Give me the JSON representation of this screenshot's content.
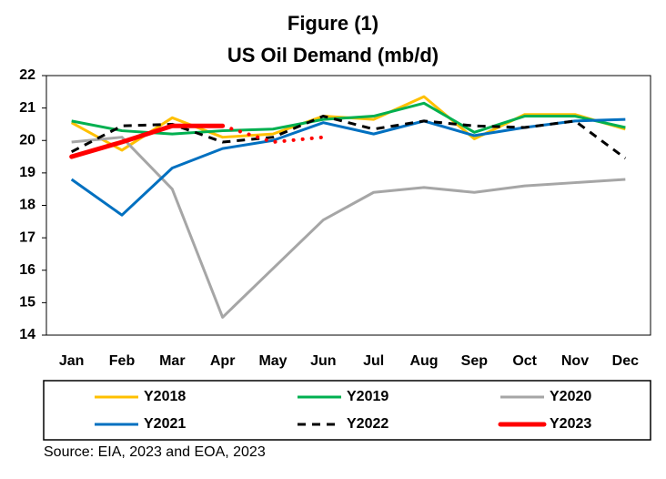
{
  "chart_data": {
    "type": "line",
    "title": "Figure (1)",
    "subtitle": "US Oil Demand (mb/d)",
    "categories": [
      "Jan",
      "Feb",
      "Mar",
      "Apr",
      "May",
      "Jun",
      "Jul",
      "Aug",
      "Sep",
      "Oct",
      "Nov",
      "Dec"
    ],
    "series": [
      {
        "name": "Y2018",
        "color": "#ffc000",
        "values": [
          20.55,
          19.7,
          20.7,
          20.1,
          20.2,
          20.75,
          20.65,
          21.35,
          20.05,
          20.8,
          20.8,
          20.35
        ]
      },
      {
        "name": "Y2019",
        "color": "#00b050",
        "values": [
          20.6,
          20.3,
          20.2,
          20.3,
          20.35,
          20.65,
          20.75,
          21.15,
          20.25,
          20.75,
          20.75,
          20.4
        ]
      },
      {
        "name": "Y2020",
        "color": "#a6a6a6",
        "values": [
          19.95,
          20.1,
          18.5,
          14.55,
          16.05,
          17.55,
          18.4,
          18.55,
          18.4,
          18.6,
          18.7,
          18.8
        ]
      },
      {
        "name": "Y2021",
        "color": "#0070c0",
        "values": [
          18.8,
          17.7,
          19.15,
          19.75,
          20.0,
          20.55,
          20.2,
          20.6,
          20.15,
          20.4,
          20.6,
          20.65
        ]
      },
      {
        "name": "Y2022",
        "color": "#000000",
        "dashed": true,
        "values": [
          19.65,
          20.45,
          20.5,
          19.95,
          20.1,
          20.75,
          20.35,
          20.6,
          20.45,
          20.4,
          20.6,
          19.45
        ]
      },
      {
        "name": "Y2023",
        "color": "#ff0000",
        "thick": true,
        "dotted_from_index": 3,
        "values": [
          19.5,
          19.95,
          20.45,
          20.45,
          19.95,
          20.1,
          null,
          null,
          null,
          null,
          null,
          null
        ]
      }
    ],
    "ylim": [
      14,
      22
    ],
    "yticks": [
      14,
      15,
      16,
      17,
      18,
      19,
      20,
      21,
      22
    ],
    "source": "Source: EIA, 2023 and EOA, 2023"
  }
}
